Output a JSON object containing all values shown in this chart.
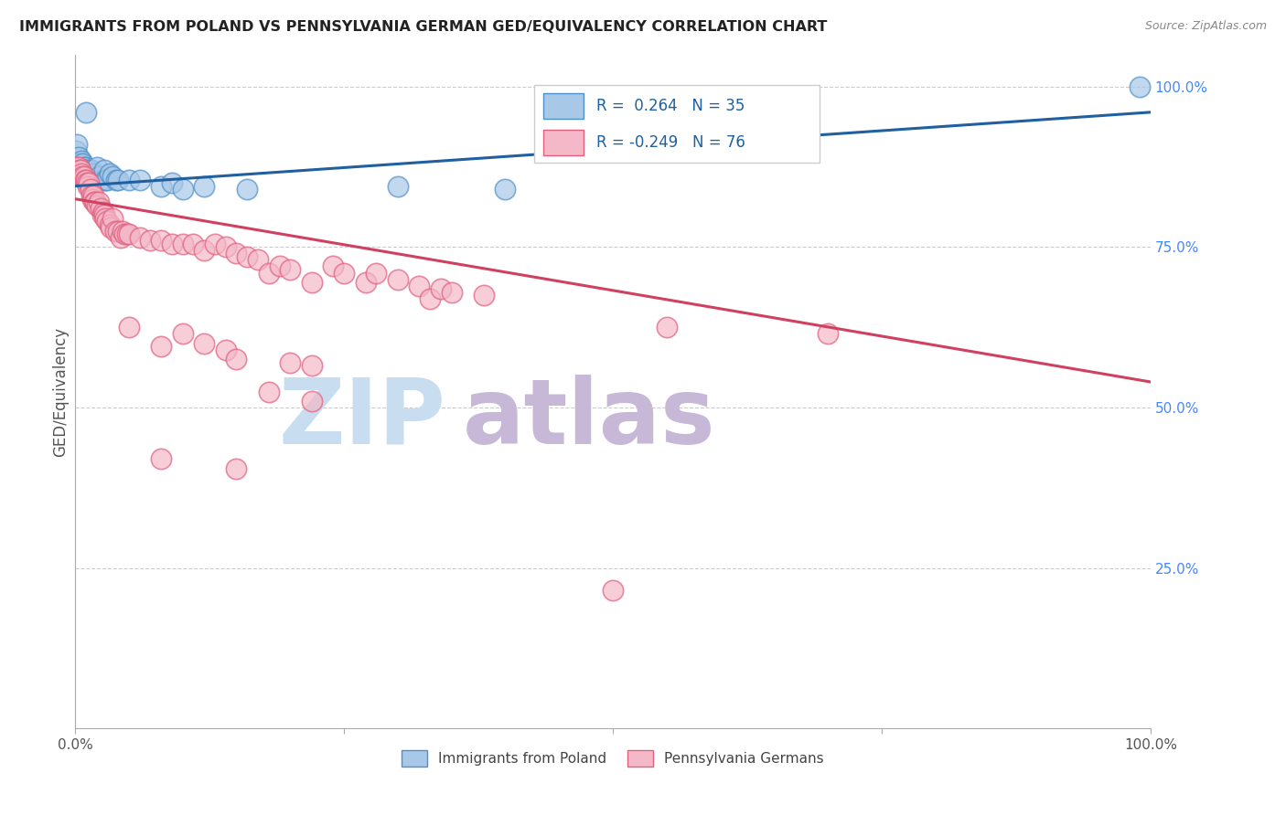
{
  "title": "IMMIGRANTS FROM POLAND VS PENNSYLVANIA GERMAN GED/EQUIVALENCY CORRELATION CHART",
  "source": "Source: ZipAtlas.com",
  "ylabel": "GED/Equivalency",
  "blue_color": "#a8c8e8",
  "pink_color": "#f4b8c8",
  "blue_edge_color": "#5090c8",
  "pink_edge_color": "#e06080",
  "blue_line_color": "#2060a0",
  "pink_line_color": "#d04060",
  "legend_text_color": "#2060a0",
  "watermark_zip_color": "#c8ddf0",
  "watermark_atlas_color": "#c8b8d8",
  "grid_color": "#cccccc",
  "bg_color": "#ffffff",
  "right_axis_color": "#4488ff",
  "blue_trend_x": [
    0.0,
    1.0
  ],
  "blue_trend_y": [
    0.845,
    0.96
  ],
  "pink_trend_x": [
    0.0,
    1.0
  ],
  "pink_trend_y": [
    0.825,
    0.54
  ],
  "blue_scatter": [
    [
      0.001,
      0.9
    ],
    [
      0.002,
      0.91
    ],
    [
      0.003,
      0.89
    ],
    [
      0.004,
      0.88
    ],
    [
      0.005,
      0.875
    ],
    [
      0.006,
      0.885
    ],
    [
      0.007,
      0.88
    ],
    [
      0.008,
      0.875
    ],
    [
      0.009,
      0.875
    ],
    [
      0.01,
      0.96
    ],
    [
      0.011,
      0.87
    ],
    [
      0.012,
      0.87
    ],
    [
      0.014,
      0.865
    ],
    [
      0.015,
      0.87
    ],
    [
      0.016,
      0.865
    ],
    [
      0.02,
      0.875
    ],
    [
      0.022,
      0.86
    ],
    [
      0.025,
      0.855
    ],
    [
      0.027,
      0.87
    ],
    [
      0.028,
      0.855
    ],
    [
      0.03,
      0.855
    ],
    [
      0.032,
      0.865
    ],
    [
      0.035,
      0.86
    ],
    [
      0.038,
      0.855
    ],
    [
      0.04,
      0.855
    ],
    [
      0.05,
      0.855
    ],
    [
      0.06,
      0.855
    ],
    [
      0.08,
      0.845
    ],
    [
      0.09,
      0.85
    ],
    [
      0.1,
      0.84
    ],
    [
      0.12,
      0.845
    ],
    [
      0.16,
      0.84
    ],
    [
      0.3,
      0.845
    ],
    [
      0.4,
      0.84
    ],
    [
      0.99,
      1.0
    ]
  ],
  "pink_scatter": [
    [
      0.002,
      0.875
    ],
    [
      0.003,
      0.875
    ],
    [
      0.004,
      0.87
    ],
    [
      0.005,
      0.87
    ],
    [
      0.006,
      0.865
    ],
    [
      0.007,
      0.86
    ],
    [
      0.008,
      0.86
    ],
    [
      0.009,
      0.855
    ],
    [
      0.01,
      0.855
    ],
    [
      0.011,
      0.85
    ],
    [
      0.012,
      0.845
    ],
    [
      0.013,
      0.85
    ],
    [
      0.014,
      0.84
    ],
    [
      0.015,
      0.83
    ],
    [
      0.016,
      0.825
    ],
    [
      0.017,
      0.83
    ],
    [
      0.018,
      0.82
    ],
    [
      0.019,
      0.82
    ],
    [
      0.02,
      0.815
    ],
    [
      0.022,
      0.82
    ],
    [
      0.024,
      0.81
    ],
    [
      0.025,
      0.8
    ],
    [
      0.026,
      0.805
    ],
    [
      0.027,
      0.8
    ],
    [
      0.028,
      0.795
    ],
    [
      0.03,
      0.79
    ],
    [
      0.032,
      0.785
    ],
    [
      0.033,
      0.78
    ],
    [
      0.035,
      0.795
    ],
    [
      0.037,
      0.775
    ],
    [
      0.04,
      0.775
    ],
    [
      0.042,
      0.765
    ],
    [
      0.044,
      0.775
    ],
    [
      0.046,
      0.77
    ],
    [
      0.048,
      0.77
    ],
    [
      0.05,
      0.77
    ],
    [
      0.06,
      0.765
    ],
    [
      0.07,
      0.76
    ],
    [
      0.08,
      0.76
    ],
    [
      0.09,
      0.755
    ],
    [
      0.1,
      0.755
    ],
    [
      0.11,
      0.755
    ],
    [
      0.12,
      0.745
    ],
    [
      0.13,
      0.755
    ],
    [
      0.14,
      0.75
    ],
    [
      0.15,
      0.74
    ],
    [
      0.16,
      0.735
    ],
    [
      0.17,
      0.73
    ],
    [
      0.18,
      0.71
    ],
    [
      0.19,
      0.72
    ],
    [
      0.2,
      0.715
    ],
    [
      0.22,
      0.695
    ],
    [
      0.24,
      0.72
    ],
    [
      0.25,
      0.71
    ],
    [
      0.27,
      0.695
    ],
    [
      0.28,
      0.71
    ],
    [
      0.3,
      0.7
    ],
    [
      0.32,
      0.69
    ],
    [
      0.33,
      0.67
    ],
    [
      0.34,
      0.685
    ],
    [
      0.35,
      0.68
    ],
    [
      0.38,
      0.675
    ],
    [
      0.05,
      0.625
    ],
    [
      0.08,
      0.595
    ],
    [
      0.1,
      0.615
    ],
    [
      0.12,
      0.6
    ],
    [
      0.14,
      0.59
    ],
    [
      0.15,
      0.575
    ],
    [
      0.2,
      0.57
    ],
    [
      0.22,
      0.565
    ],
    [
      0.18,
      0.525
    ],
    [
      0.22,
      0.51
    ],
    [
      0.08,
      0.42
    ],
    [
      0.15,
      0.405
    ],
    [
      0.55,
      0.625
    ],
    [
      0.7,
      0.615
    ],
    [
      0.5,
      0.215
    ]
  ],
  "xlim": [
    0.0,
    1.0
  ],
  "ylim": [
    0.0,
    1.05
  ]
}
